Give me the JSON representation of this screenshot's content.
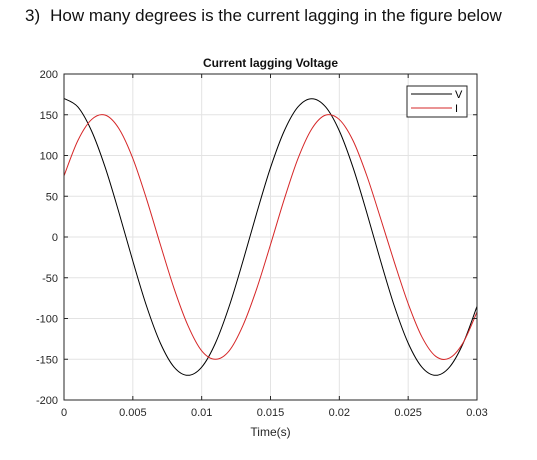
{
  "question": {
    "number": "3)",
    "text": "How many degrees is the current lagging in the figure below"
  },
  "chart_data": {
    "type": "line",
    "title": "Current lagging Voltage",
    "xlabel": "Time(s)",
    "ylabel": "",
    "xlim": [
      0,
      0.03
    ],
    "ylim": [
      -200,
      200
    ],
    "xticks": [
      0,
      0.005,
      0.01,
      0.015,
      0.02,
      0.025,
      0.03
    ],
    "xtick_labels": [
      "0",
      "0.005",
      "0.01",
      "0.015",
      "0.02",
      "0.025",
      "0.03"
    ],
    "yticks": [
      -200,
      -150,
      -100,
      -50,
      0,
      50,
      100,
      150,
      200
    ],
    "ytick_labels": [
      "-200",
      "-150",
      "-100",
      "-50",
      "0",
      "50",
      "100",
      "150",
      "200"
    ],
    "grid": true,
    "legend_position": "top-right",
    "series": [
      {
        "name": "V",
        "color": "#000000",
        "x": [
          0,
          0.001,
          0.002,
          0.003,
          0.004,
          0.005,
          0.006,
          0.007,
          0.008,
          0.009,
          0.01,
          0.011,
          0.012,
          0.013,
          0.014,
          0.015,
          0.016,
          0.017,
          0.018,
          0.019,
          0.02,
          0.021,
          0.022,
          0.023,
          0.024,
          0.025,
          0.026,
          0.027,
          0.028,
          0.029,
          0.03
        ],
        "values": [
          170,
          159.7,
          130.2,
          85.0,
          29.5,
          -29.5,
          -85.0,
          -130.2,
          -159.7,
          -169.7,
          -159.7,
          -130.2,
          -85.0,
          -29.5,
          29.5,
          85.0,
          130.2,
          159.7,
          169.7,
          159.7,
          130.2,
          85.0,
          29.5,
          -29.5,
          -85.0,
          -130.2,
          -159.7,
          -169.7,
          -159.7,
          -130.2,
          -85.0
        ]
      },
      {
        "name": "I",
        "color": "#d62728",
        "x": [
          0,
          0.001,
          0.002,
          0.003,
          0.004,
          0.005,
          0.006,
          0.007,
          0.008,
          0.009,
          0.01,
          0.011,
          0.012,
          0.013,
          0.014,
          0.015,
          0.016,
          0.017,
          0.018,
          0.019,
          0.02,
          0.021,
          0.022,
          0.023,
          0.024,
          0.025,
          0.026,
          0.027,
          0.028,
          0.029,
          0.03
        ],
        "values": [
          75,
          118.1,
          144.1,
          149.5,
          132.7,
          96.4,
          46.4,
          -9.4,
          -63.4,
          -108.5,
          -139.6,
          -150,
          -139.6,
          -108.5,
          -63.4,
          -9.4,
          46.4,
          96.4,
          132.7,
          149.5,
          144.1,
          118.1,
          75,
          22.7,
          -31.2,
          -81.8,
          -122.6,
          -146.4,
          -148.6,
          -129.5,
          -92.0
        ]
      }
    ]
  }
}
